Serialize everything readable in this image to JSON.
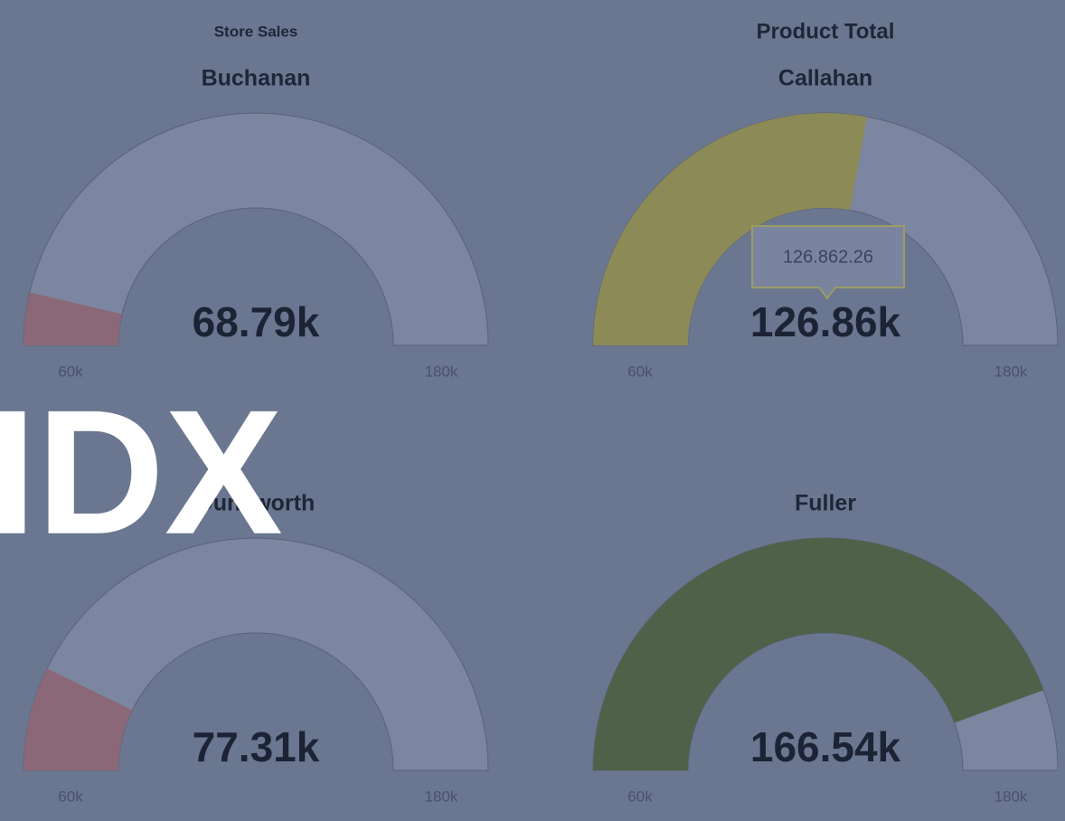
{
  "overlay_text": "IDX",
  "chart_data": [
    {
      "type": "gauge",
      "subtitle": "Store Sales",
      "title": "Buchanan",
      "value": 68790,
      "value_label": "68.79k",
      "color": "#8a6877",
      "ylim": [
        60000,
        180000
      ],
      "yticks": [
        {
          "value": 60000,
          "label": "60k"
        },
        {
          "value": 180000,
          "label": "180k"
        }
      ]
    },
    {
      "type": "gauge",
      "subtitle": "Product Total",
      "title": "Callahan",
      "value": 126862.26,
      "value_label": "126.86k",
      "tooltip": "126.862.26",
      "color": "#8c8a56",
      "ylim": [
        60000,
        180000
      ],
      "yticks": [
        {
          "value": 60000,
          "label": "60k"
        },
        {
          "value": 180000,
          "label": "180k"
        }
      ]
    },
    {
      "type": "gauge",
      "title": "Dunsworth",
      "value": 77310,
      "value_label": "77.31k",
      "color": "#8a6877",
      "ylim": [
        60000,
        180000
      ],
      "yticks": [
        {
          "value": 60000,
          "label": "60k"
        },
        {
          "value": 180000,
          "label": "180k"
        }
      ]
    },
    {
      "type": "gauge",
      "title": "Fuller",
      "value": 166540,
      "value_label": "166.54k",
      "color": "#4f6249",
      "ylim": [
        60000,
        180000
      ],
      "yticks": [
        {
          "value": 60000,
          "label": "60k"
        },
        {
          "value": 180000,
          "label": "180k"
        }
      ]
    }
  ]
}
